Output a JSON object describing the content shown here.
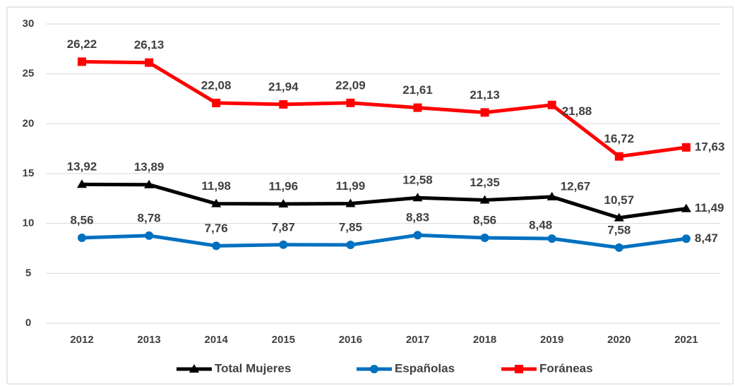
{
  "chart_data": {
    "type": "line",
    "categories": [
      "2012",
      "2013",
      "2014",
      "2015",
      "2016",
      "2017",
      "2018",
      "2019",
      "2020",
      "2021"
    ],
    "series": [
      {
        "name": "Total Mujeres",
        "color": "#000000",
        "marker": "triangle",
        "values": [
          13.92,
          13.89,
          11.98,
          11.96,
          11.99,
          12.58,
          12.35,
          12.67,
          10.57,
          11.49
        ],
        "value_labels": [
          "13,92",
          "13,89",
          "11,98",
          "11,96",
          "11,99",
          "12,58",
          "12,35",
          "12,67",
          "10,57",
          "11,49"
        ]
      },
      {
        "name": "Españolas",
        "color": "#0070c0",
        "marker": "circle",
        "values": [
          8.56,
          8.78,
          7.76,
          7.87,
          7.85,
          8.83,
          8.56,
          8.48,
          7.58,
          8.47
        ],
        "value_labels": [
          "8,56",
          "8,78",
          "7,76",
          "7,87",
          "7,85",
          "8,83",
          "8,56",
          "8,48",
          "7,58",
          "8,47"
        ]
      },
      {
        "name": "Foráneas",
        "color": "#ff0000",
        "marker": "square",
        "values": [
          26.22,
          26.13,
          22.08,
          21.94,
          22.09,
          21.61,
          21.13,
          21.88,
          16.72,
          17.63
        ],
        "value_labels": [
          "26,22",
          "26,13",
          "22,08",
          "21,94",
          "22,09",
          "21,61",
          "21,13",
          "21,88",
          "16,72",
          "17,63"
        ]
      }
    ],
    "ylim": [
      0,
      30
    ],
    "yticks": [
      0,
      5,
      10,
      15,
      20,
      25,
      30
    ],
    "grid": true,
    "legend": "bottom"
  }
}
